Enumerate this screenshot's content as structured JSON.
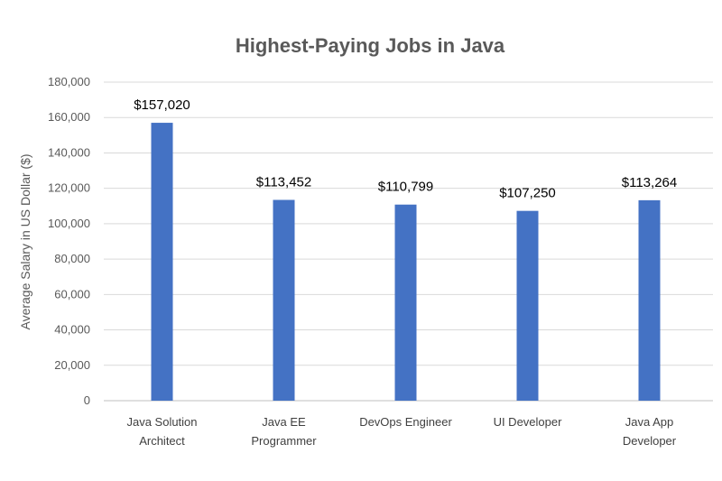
{
  "chart_data": {
    "type": "bar",
    "title": "Highest-Paying Jobs in Java",
    "xlabel": "",
    "ylabel": "Average Salary in US Dollar ($)",
    "ylim": [
      0,
      180000
    ],
    "yticks": [
      "0",
      "20,000",
      "40,000",
      "60,000",
      "80,000",
      "100,000",
      "120,000",
      "140,000",
      "160,000",
      "180,000"
    ],
    "categories": [
      [
        "Java Solution",
        "Architect"
      ],
      [
        "Java EE",
        "Programmer"
      ],
      [
        "DevOps Engineer"
      ],
      [
        "UI Developer"
      ],
      [
        "Java App",
        "Developer"
      ]
    ],
    "values": [
      157020,
      113452,
      110799,
      107250,
      113264
    ],
    "data_labels": [
      "$157,020",
      "$113,452",
      "$110,799",
      "$107,250",
      "$113,264"
    ],
    "grid": true,
    "legend": "none",
    "bar_color": "#4472c4"
  }
}
